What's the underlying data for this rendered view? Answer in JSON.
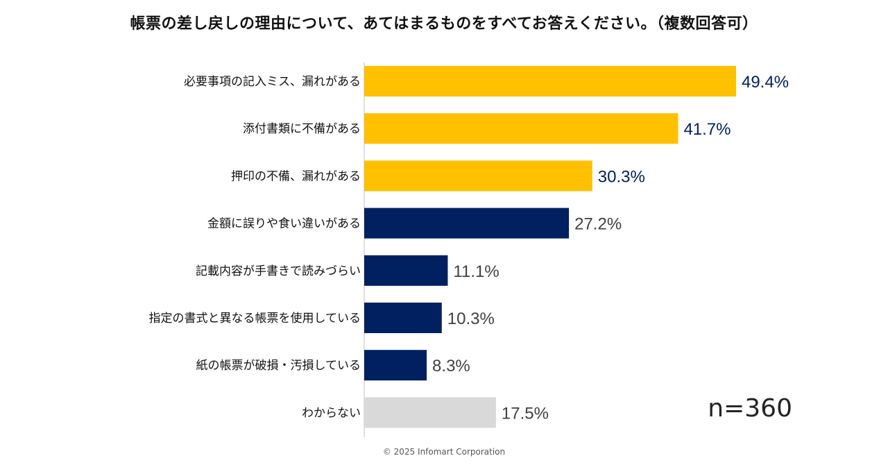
{
  "chart_data": {
    "type": "bar",
    "orientation": "horizontal",
    "title": "帳票の差し戻しの理由について、あてはまるものをすべてお答えください。（複数回答可）",
    "categories": [
      "必要事項の記入ミス、漏れがある",
      "添付書類に不備がある",
      "押印の不備、漏れがある",
      "金額に誤りや食い違いがある",
      "記載内容が手書きで読みづらい",
      "指定の書式と異なる帳票を使用している",
      "紙の帳票が破損・汚損している",
      "わからない"
    ],
    "values": [
      49.4,
      41.7,
      30.3,
      27.2,
      11.1,
      10.3,
      8.3,
      17.5
    ],
    "value_labels": [
      "49.4%",
      "41.7%",
      "30.3%",
      "27.2%",
      "11.1%",
      "10.3%",
      "8.3%",
      "17.5%"
    ],
    "bar_colors": [
      "#FFC000",
      "#FFC000",
      "#FFC000",
      "#002060",
      "#002060",
      "#002060",
      "#002060",
      "#D9D9D9"
    ],
    "label_colors": [
      "#002060",
      "#002060",
      "#002060",
      "#404040",
      "#404040",
      "#404040",
      "#404040",
      "#404040"
    ],
    "xlim": [
      0,
      50
    ],
    "xlabel": "",
    "ylabel": "",
    "grid": false
  },
  "sample_size": "n=360",
  "footer": "© 2025 Infomart Corporation"
}
